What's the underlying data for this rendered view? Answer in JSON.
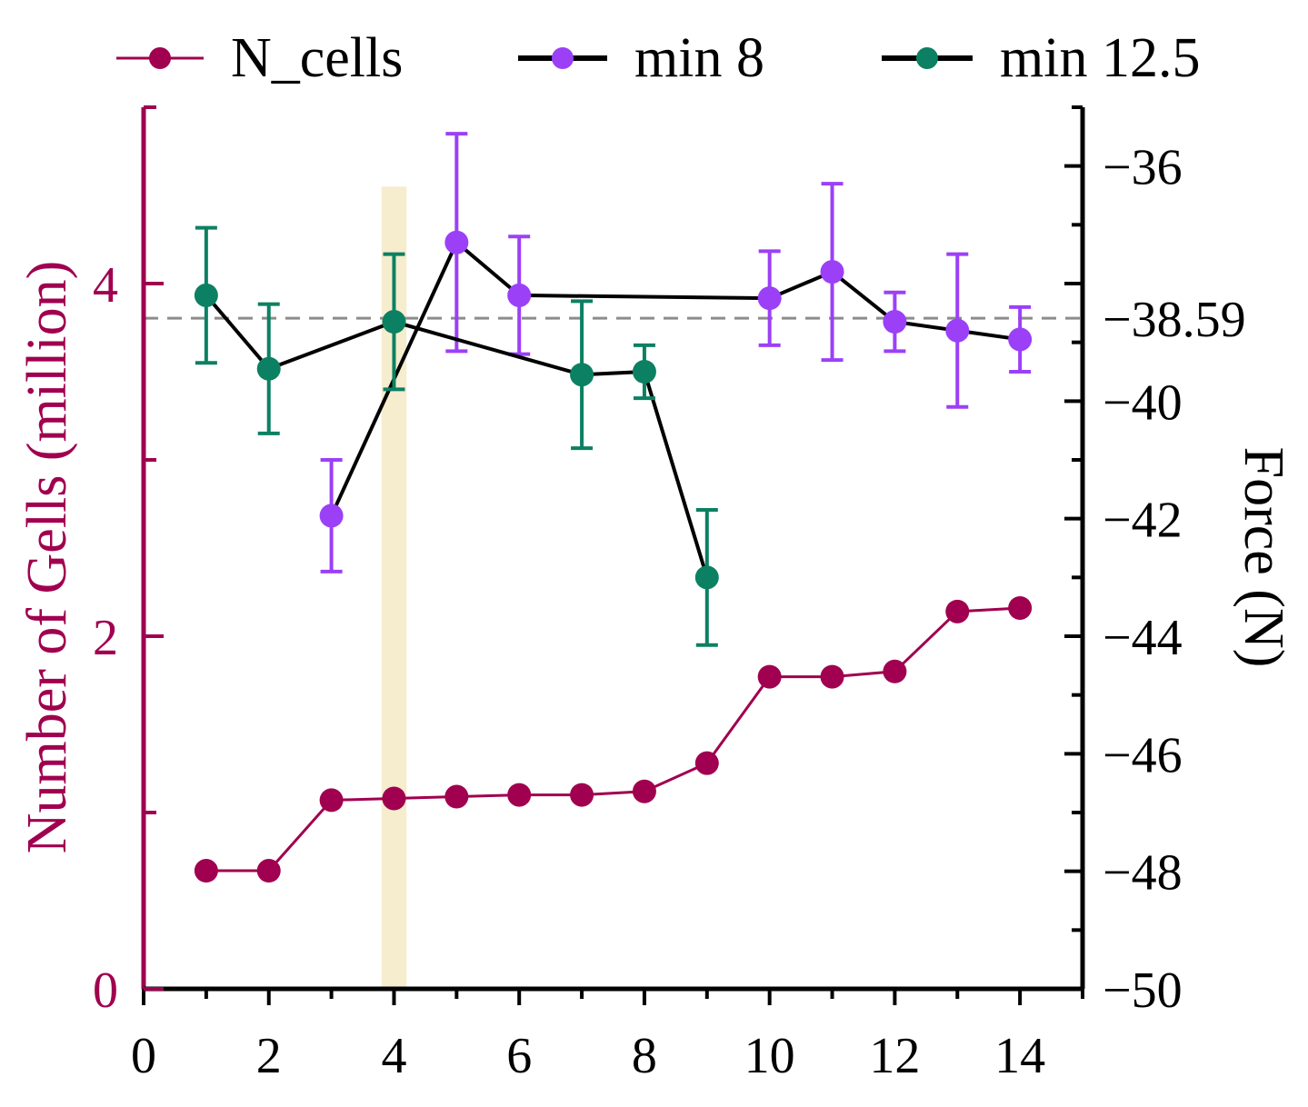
{
  "chart_data": {
    "type": "line",
    "title": "",
    "xlabel": "",
    "xlim": [
      0,
      15
    ],
    "x_ticks": [
      0,
      2,
      4,
      6,
      8,
      10,
      12,
      14
    ],
    "left_axis": {
      "label": "Number of Gells (million)",
      "lim": [
        0,
        5
      ],
      "ticks": [
        0,
        2,
        4
      ],
      "color": "#a0004f"
    },
    "right_axis": {
      "label": "Force (N)",
      "lim": [
        -50,
        -35
      ],
      "ticks": [
        -36,
        -40,
        -42,
        -44,
        -46,
        -48,
        -50
      ],
      "tick_labels": [
        "−36",
        "−40",
        "−42",
        "−44",
        "−46",
        "−48",
        "−50"
      ],
      "color": "#000000"
    },
    "reference_line": {
      "axis": "right",
      "value": -38.59,
      "label": "−38.59",
      "color": "#8c8c8c"
    },
    "highlight_band": {
      "x_from": 3.8,
      "x_to": 4.2,
      "y_top_left_units": 4.55,
      "color": "#f3e6bd"
    },
    "legend": [
      {
        "label": "N_cells",
        "marker_color": "#a0004f",
        "line_color": "#a0004f"
      },
      {
        "label": "min 8",
        "marker_color": "#9b40f7",
        "line_color": "#000000"
      },
      {
        "label": "min 12.5",
        "marker_color": "#0c8062",
        "line_color": "#000000"
      }
    ],
    "series": [
      {
        "name": "N_cells",
        "axis": "left",
        "color": "#a0004f",
        "x": [
          1,
          2,
          3,
          4,
          5,
          6,
          7,
          8,
          9,
          10,
          11,
          12,
          13,
          14
        ],
        "values": [
          0.67,
          0.67,
          1.07,
          1.08,
          1.09,
          1.1,
          1.1,
          1.12,
          1.28,
          1.77,
          1.77,
          1.8,
          2.14,
          2.16
        ]
      },
      {
        "name": "min 8",
        "axis": "right",
        "color": "#9b40f7",
        "x": [
          3,
          5,
          6,
          10,
          11,
          12,
          13,
          14
        ],
        "values": [
          -41.95,
          -37.3,
          -38.2,
          -38.25,
          -37.8,
          -38.65,
          -38.8,
          -38.95
        ],
        "err": [
          0.95,
          1.85,
          1.0,
          0.8,
          1.5,
          0.5,
          1.3,
          0.55
        ]
      },
      {
        "name": "min 12.5",
        "axis": "right",
        "color": "#0c8062",
        "x": [
          1,
          2,
          4,
          7,
          8,
          9
        ],
        "values": [
          -38.2,
          -39.45,
          -38.65,
          -39.55,
          -39.5,
          -43.0
        ],
        "err": [
          1.15,
          1.1,
          1.15,
          1.25,
          0.45,
          1.15
        ]
      }
    ]
  }
}
